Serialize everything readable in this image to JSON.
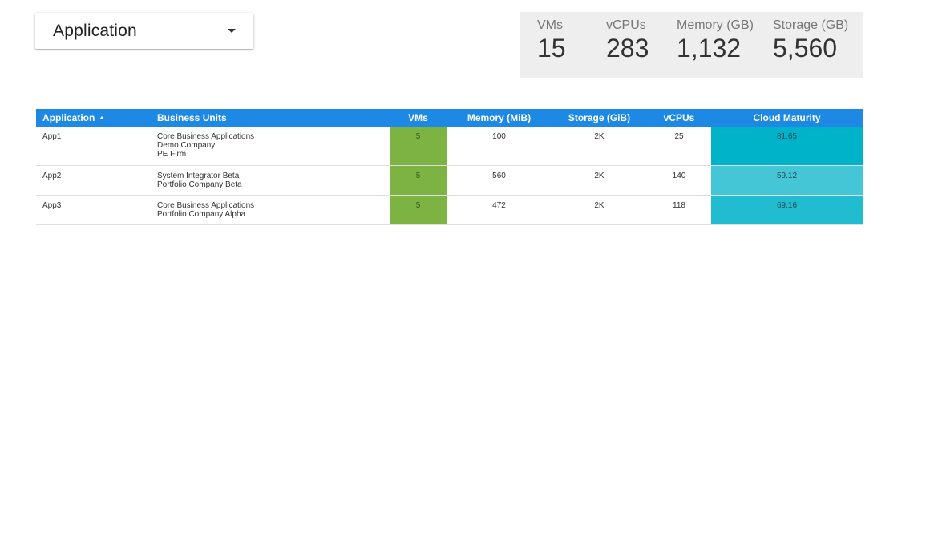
{
  "filter": {
    "label": "Application",
    "icon": "caret-down-icon"
  },
  "kpis": [
    {
      "label": "VMs",
      "value": "15"
    },
    {
      "label": "vCPUs",
      "value": "283"
    },
    {
      "label": "Memory (GB)",
      "value": "1,132"
    },
    {
      "label": "Storage (GB)",
      "value": "5,560"
    }
  ],
  "table": {
    "columns": [
      "Application",
      "Business Units",
      "VMs",
      "Memory (MiB)",
      "Storage (GiB)",
      "vCPUs",
      "Cloud Maturity"
    ],
    "sort_icon": "sort-ascending-icon",
    "header_color": "#1e88e5",
    "vms_color": "#7cb342",
    "rows": [
      {
        "application": "App1",
        "business_units": [
          "Core Business Applications",
          "Demo Company",
          "PE Firm"
        ],
        "vms": "5",
        "memory": "100",
        "storage": "2K",
        "vcpus": "25",
        "cloud_maturity": "81.65",
        "maturity_color": "#00b3c9"
      },
      {
        "application": "App2",
        "business_units": [
          "System Integrator Beta",
          "Portfolio Company Beta"
        ],
        "vms": "5",
        "memory": "560",
        "storage": "2K",
        "vcpus": "140",
        "cloud_maturity": "59.12",
        "maturity_color": "#45c6d6"
      },
      {
        "application": "App3",
        "business_units": [
          "Core Business Applications",
          "Portfolio Company Alpha"
        ],
        "vms": "5",
        "memory": "472",
        "storage": "2K",
        "vcpus": "118",
        "cloud_maturity": "69.16",
        "maturity_color": "#22bcd1"
      }
    ]
  }
}
